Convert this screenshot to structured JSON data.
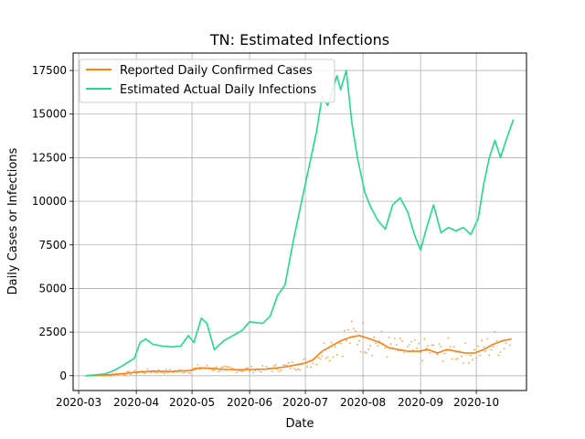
{
  "chart_data": {
    "type": "line",
    "title": "TN: Estimated Infections",
    "xlabel": "Date",
    "ylabel": "Daily Cases or Infections",
    "xlim": [
      "2020-02-27",
      "2020-10-28"
    ],
    "ylim": [
      -850,
      18500
    ],
    "grid": true,
    "legend_position": "top-left",
    "x_ticks": [
      "2020-03",
      "2020-04",
      "2020-05",
      "2020-06",
      "2020-07",
      "2020-08",
      "2020-09",
      "2020-10"
    ],
    "y_ticks": [
      0,
      2500,
      5000,
      7500,
      10000,
      12500,
      15000,
      17500
    ],
    "colors": {
      "reported": "#ff7f0e",
      "estimated": "#1fdb8c",
      "grid": "#b0b0b0"
    },
    "series": [
      {
        "name": "Reported Daily Confirmed Cases",
        "color": "#ff7f0e",
        "x": [
          "2020-03-05",
          "2020-03-15",
          "2020-03-25",
          "2020-04-01",
          "2020-04-10",
          "2020-04-20",
          "2020-04-30",
          "2020-05-05",
          "2020-05-12",
          "2020-05-20",
          "2020-05-31",
          "2020-06-10",
          "2020-06-20",
          "2020-06-30",
          "2020-07-05",
          "2020-07-10",
          "2020-07-15",
          "2020-07-20",
          "2020-07-25",
          "2020-07-30",
          "2020-08-05",
          "2020-08-10",
          "2020-08-15",
          "2020-08-20",
          "2020-08-25",
          "2020-08-31",
          "2020-09-05",
          "2020-09-10",
          "2020-09-15",
          "2020-09-20",
          "2020-09-25",
          "2020-09-30",
          "2020-10-05",
          "2020-10-10",
          "2020-10-15",
          "2020-10-20"
        ],
        "y": [
          0,
          30,
          120,
          200,
          260,
          240,
          300,
          450,
          420,
          350,
          350,
          380,
          500,
          700,
          900,
          1400,
          1700,
          2000,
          2200,
          2300,
          2100,
          1900,
          1600,
          1500,
          1400,
          1400,
          1500,
          1300,
          1500,
          1400,
          1300,
          1300,
          1500,
          1800,
          2000,
          2100
        ]
      },
      {
        "name": "Estimated Actual Daily Infections",
        "color": "#1fdb8c",
        "x": [
          "2020-03-05",
          "2020-03-10",
          "2020-03-15",
          "2020-03-20",
          "2020-03-25",
          "2020-03-28",
          "2020-03-31",
          "2020-04-03",
          "2020-04-06",
          "2020-04-10",
          "2020-04-15",
          "2020-04-20",
          "2020-04-25",
          "2020-04-29",
          "2020-05-02",
          "2020-05-06",
          "2020-05-09",
          "2020-05-13",
          "2020-05-18",
          "2020-05-23",
          "2020-05-28",
          "2020-06-01",
          "2020-06-04",
          "2020-06-08",
          "2020-06-12",
          "2020-06-16",
          "2020-06-20",
          "2020-06-25",
          "2020-06-30",
          "2020-07-04",
          "2020-07-07",
          "2020-07-10",
          "2020-07-13",
          "2020-07-16",
          "2020-07-18",
          "2020-07-20",
          "2020-07-23",
          "2020-07-26",
          "2020-07-29",
          "2020-07-31",
          "2020-08-02",
          "2020-08-05",
          "2020-08-09",
          "2020-08-13",
          "2020-08-17",
          "2020-08-21",
          "2020-08-25",
          "2020-08-29",
          "2020-09-01",
          "2020-09-04",
          "2020-09-08",
          "2020-09-12",
          "2020-09-16",
          "2020-09-20",
          "2020-09-24",
          "2020-09-28",
          "2020-10-02",
          "2020-10-05",
          "2020-10-08",
          "2020-10-11",
          "2020-10-14",
          "2020-10-17",
          "2020-10-21"
        ],
        "y": [
          0,
          50,
          100,
          300,
          600,
          800,
          1000,
          1900,
          2100,
          1800,
          1700,
          1650,
          1700,
          2300,
          1900,
          3300,
          3000,
          1500,
          2000,
          2300,
          2600,
          3100,
          3050,
          3000,
          3400,
          4600,
          5200,
          8000,
          10500,
          12500,
          14000,
          16000,
          15500,
          16500,
          17200,
          16400,
          17500,
          14500,
          12500,
          11500,
          10500,
          9700,
          8900,
          8400,
          9800,
          10200,
          9400,
          8000,
          7200,
          8400,
          9800,
          8200,
          8500,
          8300,
          8500,
          8100,
          9000,
          11000,
          12500,
          13500,
          12500,
          13500,
          14700
        ]
      }
    ]
  }
}
